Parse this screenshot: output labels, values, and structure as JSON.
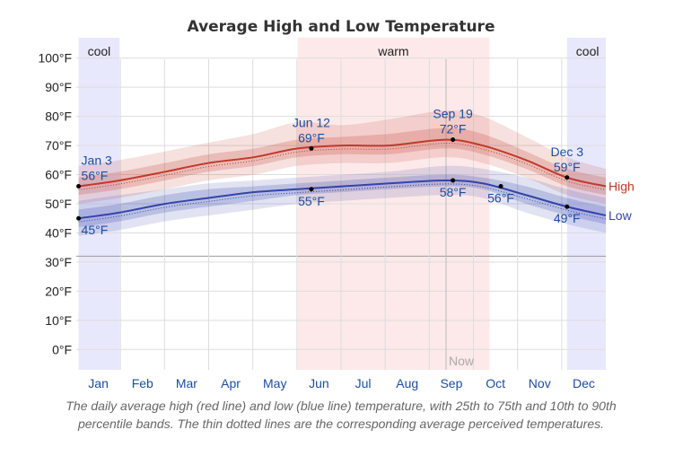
{
  "chart_data": {
    "type": "line",
    "title": "Average High and Low Temperature",
    "y_ticks": [
      "0°F",
      "10°F",
      "20°F",
      "30°F",
      "40°F",
      "50°F",
      "60°F",
      "70°F",
      "80°F",
      "90°F",
      "100°F"
    ],
    "ylim": [
      -7,
      107
    ],
    "months": [
      "Jan",
      "Feb",
      "Mar",
      "Apr",
      "May",
      "Jun",
      "Jul",
      "Aug",
      "Sep",
      "Oct",
      "Nov",
      "Dec"
    ],
    "seasons": [
      {
        "label": "cool",
        "start_day": 1,
        "end_day": 19,
        "color": "#e8e8fc"
      },
      {
        "label": "warm",
        "start_day": 97,
        "end_day": 181,
        "color": "#fde9e9"
      },
      {
        "label": "cool",
        "start_day": 215,
        "end_day": 232,
        "color": "#e8e8fc"
      }
    ],
    "season_labels": [
      {
        "label": "cool",
        "day": 10
      },
      {
        "label": "warm",
        "day": 139
      },
      {
        "label": "cool",
        "day": 224
      }
    ],
    "freezing_line": 32,
    "now_day": 162,
    "now_label": "Now",
    "series": [
      {
        "name": "High",
        "color": "#c0392b",
        "days": [
          1,
          19,
          39,
          58,
          78,
          97,
          117,
          137,
          162,
          178,
          197,
          215,
          232
        ],
        "values": [
          56,
          58,
          61,
          64,
          66,
          69,
          70,
          70,
          72,
          70,
          65,
          59,
          56
        ],
        "p25": [
          53,
          55,
          58,
          61,
          63,
          66,
          67,
          67,
          69,
          67,
          62,
          56,
          53
        ],
        "p75": [
          59,
          61,
          64,
          67,
          69,
          72,
          73,
          74,
          76,
          74,
          68,
          62,
          59
        ],
        "p10": [
          50,
          52,
          55,
          58,
          60,
          63,
          64,
          64,
          66,
          64,
          59,
          53,
          50
        ],
        "p90": [
          63,
          65,
          68,
          71,
          74,
          78,
          77,
          79,
          82,
          80,
          73,
          66,
          62
        ]
      },
      {
        "name": "Low",
        "color": "#3344aa",
        "days": [
          1,
          19,
          39,
          58,
          78,
          97,
          117,
          137,
          162,
          178,
          197,
          215,
          232
        ],
        "values": [
          45,
          47,
          50,
          52,
          54,
          55,
          56,
          57,
          58,
          57,
          53,
          49,
          46
        ],
        "p25": [
          42,
          44,
          47,
          49,
          51,
          53,
          54,
          55,
          56,
          55,
          50,
          46,
          43
        ],
        "p75": [
          48,
          50,
          53,
          55,
          56,
          57,
          58,
          59,
          60,
          59,
          56,
          52,
          49
        ],
        "p10": [
          39,
          41,
          44,
          46,
          48,
          50,
          51,
          52,
          53,
          52,
          47,
          43,
          40
        ],
        "p90": [
          51,
          53,
          55,
          57,
          58,
          59,
          60,
          61,
          63,
          62,
          59,
          55,
          52
        ]
      }
    ],
    "annotations": [
      {
        "date": "Jan 3",
        "value": "56°F",
        "day": 1,
        "temp": 56,
        "position": "above-right"
      },
      {
        "date": "",
        "value": "45°F",
        "day": 1,
        "temp": 45,
        "position": "below-right"
      },
      {
        "date": "Jun 12",
        "value": "69°F",
        "day": 103,
        "temp": 69,
        "position": "above"
      },
      {
        "date": "",
        "value": "55°F",
        "day": 103,
        "temp": 55,
        "position": "below"
      },
      {
        "date": "Sep 19",
        "value": "72°F",
        "day": 165,
        "temp": 72,
        "position": "above"
      },
      {
        "date": "",
        "value": "58°F",
        "day": 165,
        "temp": 58,
        "position": "below"
      },
      {
        "date": "",
        "value": "56°F",
        "day": 186,
        "temp": 56,
        "position": "below"
      },
      {
        "date": "Dec 3",
        "value": "59°F",
        "day": 215,
        "temp": 59,
        "position": "above"
      },
      {
        "date": "",
        "value": "49°F",
        "day": 215,
        "temp": 49,
        "position": "below"
      }
    ]
  },
  "caption": "The daily average high (red line) and low (blue line) temperature, with 25th to 75th and 10th to 90th percentile bands. The thin dotted lines are the corresponding average perceived temperatures."
}
